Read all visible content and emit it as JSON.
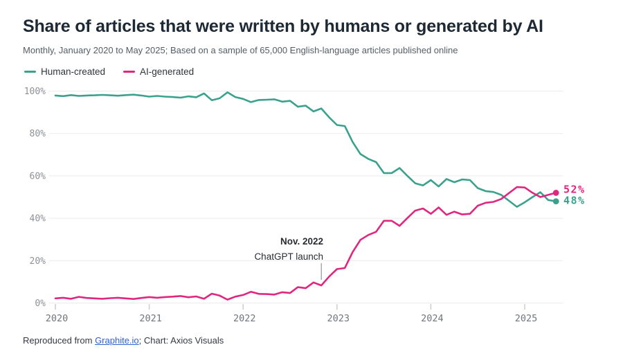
{
  "header": {
    "title": "Share of articles that were written by humans or generated by AI",
    "subtitle": "Monthly, January 2020 to May 2025; Based on a sample of 65,000 English-language articles published online"
  },
  "legend": {
    "items": [
      {
        "label": "Human-created"
      },
      {
        "label": "AI-generated"
      }
    ]
  },
  "chart_data": {
    "type": "line",
    "title": "Share of articles that were written by humans or generated by AI",
    "subtitle": "Monthly, January 2020 to May 2025; Based on a sample of 65,000 English-language articles published online",
    "x_monthly_start": "2020-01",
    "x_monthly_end": "2025-05",
    "x_year_ticks": [
      2020,
      2021,
      2022,
      2023,
      2024,
      2025
    ],
    "y_ticks": [
      {
        "value": 0,
        "label": "0%"
      },
      {
        "value": 20,
        "label": "20%"
      },
      {
        "value": 40,
        "label": "40%"
      },
      {
        "value": 60,
        "label": "60%"
      },
      {
        "value": 80,
        "label": "80%"
      },
      {
        "value": 100,
        "label": "100%"
      }
    ],
    "ylim": [
      0,
      100
    ],
    "grid": true,
    "legend_position": "top-left",
    "series": [
      {
        "id": "human",
        "name": "Human-created",
        "color": "#3aa18d",
        "values": [
          97.9,
          97.6,
          98.1,
          97.7,
          97.9,
          98.0,
          98.2,
          98.0,
          97.8,
          98.1,
          98.3,
          97.9,
          97.4,
          97.7,
          97.4,
          97.2,
          96.9,
          97.5,
          97.1,
          98.9,
          95.7,
          96.6,
          99.4,
          97.2,
          96.3,
          94.8,
          95.8,
          95.9,
          96.1,
          95.0,
          95.4,
          92.6,
          93.1,
          90.4,
          91.8,
          87.6,
          84.0,
          83.5,
          76.0,
          70.3,
          68.0,
          66.5,
          61.3,
          61.3,
          63.7,
          60.0,
          56.5,
          55.5,
          58.0,
          55.0,
          58.5,
          57.0,
          58.3,
          58.0,
          54.2,
          52.8,
          52.4,
          51.0,
          48.2,
          45.4,
          47.5,
          50.0,
          52.3,
          48.6,
          48.0
        ]
      },
      {
        "id": "ai",
        "name": "AI-generated",
        "color": "#e0267f",
        "values": [
          2.2,
          2.5,
          2.0,
          2.9,
          2.4,
          2.2,
          2.0,
          2.3,
          2.5,
          2.2,
          1.9,
          2.4,
          2.8,
          2.5,
          2.8,
          3.0,
          3.3,
          2.7,
          3.1,
          2.0,
          4.4,
          3.5,
          1.6,
          3.0,
          3.8,
          5.3,
          4.3,
          4.2,
          4.0,
          5.1,
          4.7,
          7.5,
          7.0,
          9.7,
          8.3,
          12.5,
          16.0,
          16.5,
          24.0,
          29.8,
          32.1,
          33.6,
          38.8,
          38.8,
          36.4,
          40.1,
          43.6,
          44.6,
          42.1,
          45.1,
          41.6,
          43.1,
          41.8,
          42.1,
          45.9,
          47.3,
          47.7,
          49.1,
          51.9,
          54.7,
          54.5,
          52.0,
          50.0,
          51.0,
          52.0
        ]
      }
    ],
    "annotation": {
      "line1": "Nov. 2022",
      "line2": "ChatGPT launch",
      "x_month": "2022-11"
    },
    "end_labels": [
      {
        "series": "ai",
        "text": "52%"
      },
      {
        "series": "human",
        "text": "48%"
      }
    ]
  },
  "footer": {
    "prefix": "Reproduced from ",
    "link_text": "Graphite.io",
    "suffix": "; Chart: Axios Visuals"
  }
}
